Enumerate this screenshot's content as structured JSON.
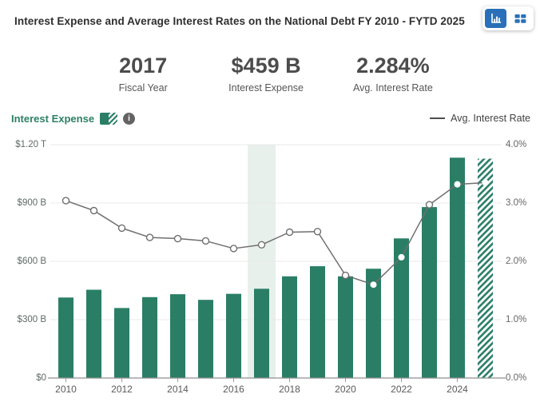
{
  "header": {
    "title": "Interest Expense and Average Interest Rates on the National Debt FY 2010 - FYTD 2025",
    "view_toggle": {
      "chart_view_icon": "bar-chart-icon",
      "table_view_icon": "table-icon",
      "selected": "chart"
    }
  },
  "stats": [
    {
      "value": "2017",
      "label": "Fiscal Year"
    },
    {
      "value": "$459 B",
      "label": "Interest Expense"
    },
    {
      "value": "2.284%",
      "label": "Avg. Interest Rate"
    }
  ],
  "legend": {
    "bars_label": "Interest Expense",
    "bars_swatch": "half-solid-half-hatched-green",
    "info_icon": "info-circle-icon",
    "line_label": "Avg. Interest Rate",
    "line_swatch": "gray-dash"
  },
  "colors": {
    "bar_green": "#2a7e66",
    "legend_green_text": "#2c8065",
    "line_gray": "#6f6f6f",
    "highlight_band": "#e8f0ec",
    "accent_blue": "#2970b8",
    "gridline": "#e9e9e9",
    "axis_line": "#8f8f8f"
  },
  "chart_data": {
    "type": "bar",
    "title": "Interest Expense and Average Interest Rates on the National Debt FY 2010 - FYTD 2025",
    "x": [
      2010,
      2011,
      2012,
      2013,
      2014,
      2015,
      2016,
      2017,
      2018,
      2019,
      2020,
      2021,
      2022,
      2023,
      2024,
      2025
    ],
    "series": [
      {
        "name": "Interest Expense",
        "type": "bar",
        "axis": "left",
        "unit": "$ billions",
        "values": [
          414,
          454,
          360,
          416,
          431,
          402,
          433,
          459,
          523,
          575,
          523,
          562,
          718,
          879,
          1133,
          1128
        ]
      },
      {
        "name": "Avg. Interest Rate",
        "type": "line",
        "axis": "right",
        "unit": "%",
        "values": [
          3.04,
          2.87,
          2.57,
          2.41,
          2.39,
          2.35,
          2.22,
          2.284,
          2.5,
          2.51,
          1.76,
          1.6,
          2.07,
          2.97,
          3.32,
          3.35
        ]
      }
    ],
    "left_axis": {
      "tick_labels": [
        "$0",
        "$300 B",
        "$600 B",
        "$900 B",
        "$1.20 T"
      ],
      "range": [
        0,
        1200
      ]
    },
    "right_axis": {
      "tick_labels": [
        "0.0%",
        "1.0%",
        "2.0%",
        "3.0%",
        "4.0%"
      ],
      "range": [
        0,
        4
      ]
    },
    "x_tick_labels": [
      "2010",
      "2012",
      "2014",
      "2016",
      "2018",
      "2020",
      "2022",
      "2024"
    ],
    "highlighted_year": 2017,
    "hatched_year": 2025,
    "grid": true,
    "legend_position": "top"
  }
}
